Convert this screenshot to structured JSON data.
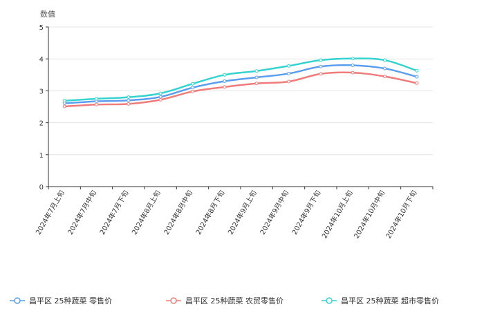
{
  "chart_data": {
    "type": "line",
    "ylabel": "数值",
    "ylim": [
      0,
      5
    ],
    "yticks": [
      "0",
      "1",
      "2",
      "3",
      "4",
      "5"
    ],
    "categories": [
      "2024年7月上旬",
      "2024年7月中旬",
      "2024年7月下旬",
      "2024年8月上旬",
      "2024年8月中旬",
      "2024年8月下旬",
      "2024年9月上旬",
      "2024年9月中旬",
      "2024年9月下旬",
      "2024年10月上旬",
      "2024年10月中旬",
      "2024年10月下旬"
    ],
    "series": [
      {
        "name": "昌平区 25种蔬菜 零售价",
        "color": "#5b9ef0",
        "values": [
          2.61,
          2.67,
          2.7,
          2.81,
          3.1,
          3.3,
          3.42,
          3.54,
          3.76,
          3.8,
          3.7,
          3.44
        ]
      },
      {
        "name": "昌平区 25种蔬菜 农贸零售价",
        "color": "#f07b7b",
        "values": [
          2.51,
          2.57,
          2.59,
          2.72,
          2.98,
          3.12,
          3.23,
          3.29,
          3.53,
          3.57,
          3.45,
          3.24
        ]
      },
      {
        "name": "昌平区 25种蔬菜 超市零售价",
        "color": "#35d3d0",
        "values": [
          2.69,
          2.75,
          2.8,
          2.92,
          3.22,
          3.5,
          3.62,
          3.78,
          3.96,
          4.01,
          3.96,
          3.63
        ]
      }
    ]
  }
}
